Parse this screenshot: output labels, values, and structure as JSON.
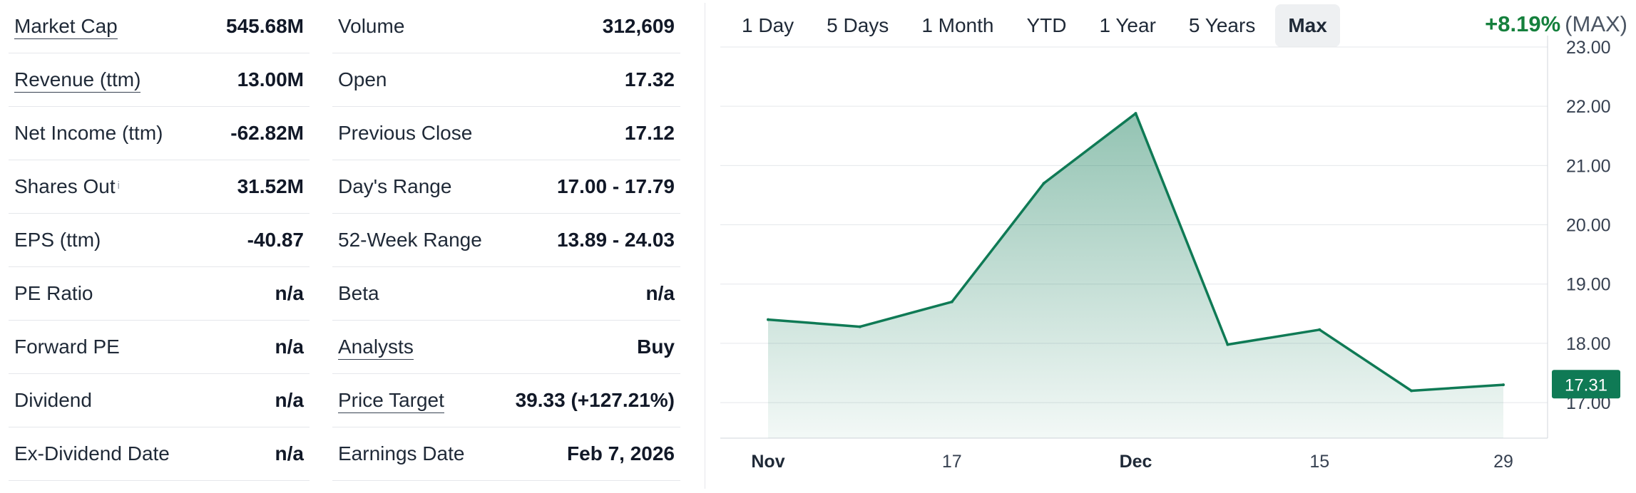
{
  "stats_left": [
    {
      "label": "Market Cap",
      "value": "545.68M",
      "link": true
    },
    {
      "label": "Revenue (ttm)",
      "value": "13.00M",
      "link": true
    },
    {
      "label": "Net Income (ttm)",
      "value": "-62.82M",
      "link": false
    },
    {
      "label": "Shares Out",
      "value": "31.52M",
      "link": false,
      "info": "i"
    },
    {
      "label": "EPS (ttm)",
      "value": "-40.87",
      "link": false
    },
    {
      "label": "PE Ratio",
      "value": "n/a",
      "link": false
    },
    {
      "label": "Forward PE",
      "value": "n/a",
      "link": false
    },
    {
      "label": "Dividend",
      "value": "n/a",
      "link": false
    },
    {
      "label": "Ex-Dividend Date",
      "value": "n/a",
      "link": false
    }
  ],
  "stats_right": [
    {
      "label": "Volume",
      "value": "312,609",
      "link": false
    },
    {
      "label": "Open",
      "value": "17.32",
      "link": false
    },
    {
      "label": "Previous Close",
      "value": "17.12",
      "link": false
    },
    {
      "label": "Day's Range",
      "value": "17.00 - 17.79",
      "link": false
    },
    {
      "label": "52-Week Range",
      "value": "13.89 - 24.03",
      "link": false
    },
    {
      "label": "Beta",
      "value": "n/a",
      "link": false
    },
    {
      "label": "Analysts",
      "value": "Buy",
      "link": true
    },
    {
      "label": "Price Target",
      "value": "39.33 (+127.21%)",
      "link": true
    },
    {
      "label": "Earnings Date",
      "value": "Feb 7, 2026",
      "link": false
    }
  ],
  "range_tabs": [
    "1 Day",
    "5 Days",
    "1 Month",
    "YTD",
    "1 Year",
    "5 Years",
    "Max"
  ],
  "active_range": "Max",
  "performance": {
    "change": "+8.19%",
    "period": "(MAX)"
  },
  "colors": {
    "line": "#0f7a55",
    "fill": "#0f7a55",
    "badge": "#0f7a55",
    "positive": "#15803d"
  },
  "chart_data": {
    "type": "area",
    "x": [
      0,
      1,
      2,
      3,
      4,
      5,
      6,
      7,
      8
    ],
    "values": [
      18.4,
      18.28,
      18.7,
      20.7,
      21.88,
      17.98,
      18.23,
      17.2,
      17.3
    ],
    "x_ticks": [
      {
        "x": 0,
        "label": "Nov",
        "bold": true
      },
      {
        "x": 2,
        "label": "17",
        "bold": false
      },
      {
        "x": 4,
        "label": "Dec",
        "bold": true
      },
      {
        "x": 6,
        "label": "15",
        "bold": false
      },
      {
        "x": 8,
        "label": "29",
        "bold": false
      }
    ],
    "y_ticks": [
      "17.00",
      "18.00",
      "19.00",
      "20.00",
      "21.00",
      "22.00",
      "23.00"
    ],
    "y_tick_values": [
      17,
      18,
      19,
      20,
      21,
      22,
      23
    ],
    "ylim": [
      16.4,
      23.0
    ],
    "last_value": 17.31,
    "last_label": "17.31",
    "grid": true
  }
}
